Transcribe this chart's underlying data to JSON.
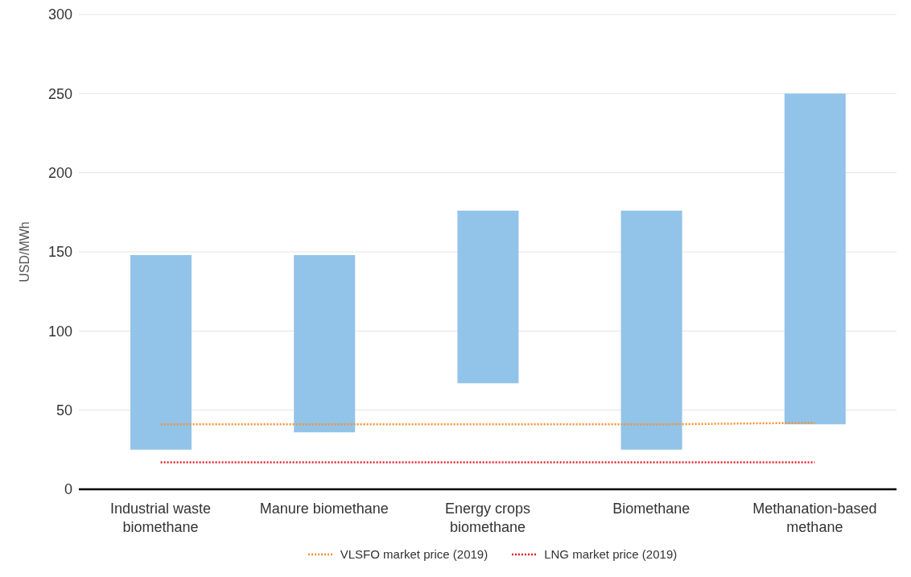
{
  "chart_data": {
    "type": "bar",
    "ylabel": "USD/MWh",
    "categories": [
      "Industrial waste biomethane",
      "Manure biomethane",
      "Energy crops biomethane",
      "Biomethane",
      "Methanation-based methane"
    ],
    "base": [
      25,
      36,
      67,
      25,
      41
    ],
    "values": [
      123,
      112,
      109,
      151,
      209
    ],
    "color": "#92c3e8",
    "series": [
      {
        "type": "line",
        "name": "VLSFO market price (2019)",
        "color": "#f39130",
        "values": [
          41,
          41,
          41,
          41,
          42
        ],
        "line_style": "dotted"
      },
      {
        "type": "line",
        "name": "LNG market price (2019)",
        "color": "#e3232b",
        "values": [
          17,
          17,
          17,
          17,
          17
        ],
        "line_style": "dotted"
      }
    ],
    "ylim": [
      0,
      300
    ],
    "yticks": [
      0,
      50,
      100,
      150,
      200,
      250,
      300
    ],
    "grid": "y",
    "legend": "bottom",
    "marker": "none"
  }
}
